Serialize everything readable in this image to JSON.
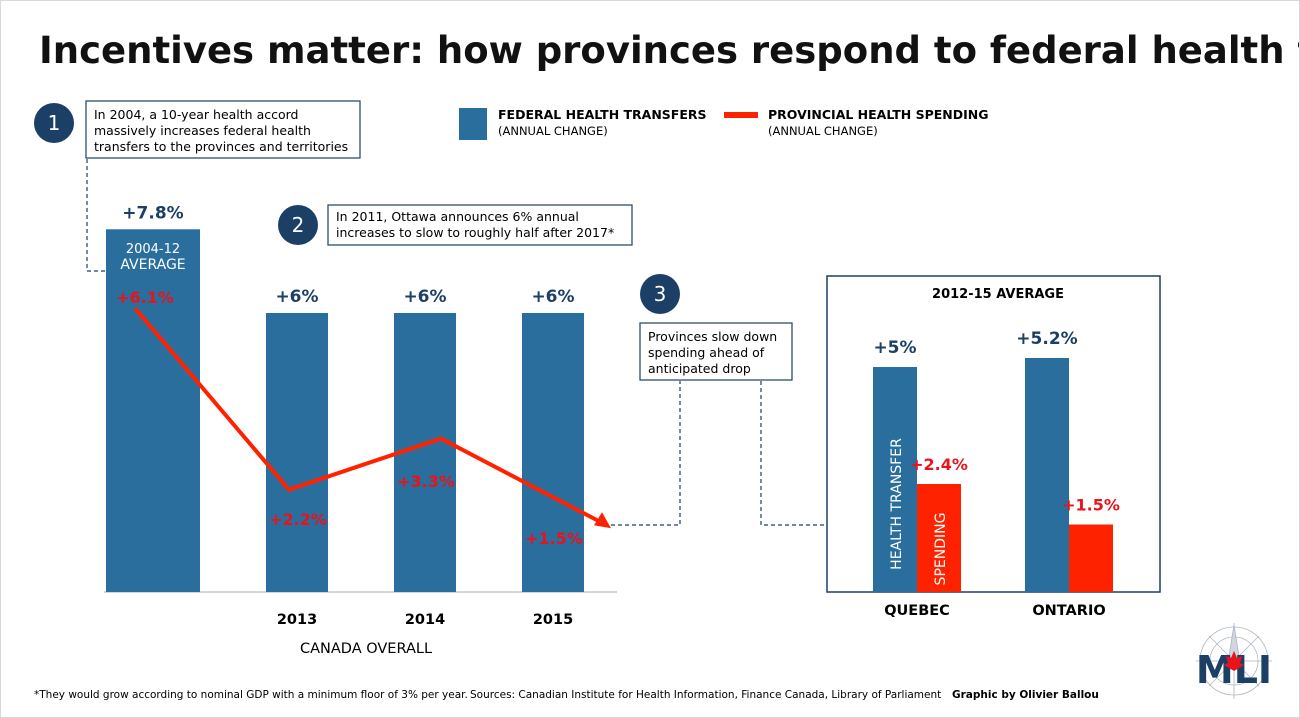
{
  "title": "Incentives matter: how provinces respond to federal health funding",
  "legend": {
    "federal": {
      "label": "FEDERAL HEALTH TRANSFERS",
      "sub": "(ANNUAL CHANGE)"
    },
    "provincial": {
      "label": "PROVINCIAL HEALTH SPENDING",
      "sub": "(ANNUAL CHANGE)"
    }
  },
  "annotations": [
    {
      "number": "1",
      "lines": [
        "In 2004, a 10-year health accord",
        "massively increases federal health",
        "transfers to the provinces and territories"
      ]
    },
    {
      "number": "2",
      "lines": [
        "In 2011, Ottawa announces 6% annual",
        "increases to slow to roughly half after 2017*"
      ]
    },
    {
      "number": "3",
      "lines": [
        "Provinces slow down",
        "spending ahead of",
        "anticipated drop"
      ]
    }
  ],
  "colors": {
    "federal": "#2a6e9e",
    "provincial": "#ff2200",
    "circle": "#1c3f66",
    "dark_label": "#1c3f66",
    "red_label": "#e8131b"
  },
  "chart_data": [
    {
      "type": "bar",
      "categories": [
        "2004-12 AVERAGE",
        "2013",
        "2014",
        "2015"
      ],
      "bar_inner_label": [
        "2004-12",
        "AVERAGE"
      ],
      "xlabel": "CANADA OVERALL",
      "series": [
        {
          "name": "FEDERAL HEALTH TRANSFERS",
          "type": "bar",
          "values": [
            7.8,
            6,
            6,
            6
          ],
          "labels": [
            "+7.8%",
            "+6%",
            "+6%",
            "+6%"
          ]
        },
        {
          "name": "PROVINCIAL HEALTH SPENDING",
          "type": "line",
          "values": [
            6.1,
            2.2,
            3.3,
            1.5
          ],
          "labels": [
            "+6.1%",
            "+2.2%",
            "+3.3%",
            "+1.5%"
          ]
        }
      ]
    },
    {
      "type": "bar",
      "title": "2012-15 AVERAGE",
      "categories": [
        "QUEBEC",
        "ONTARIO"
      ],
      "bar_text": {
        "federal": "HEALTH TRANSFER",
        "provincial": "SPENDING"
      },
      "series": [
        {
          "name": "FEDERAL HEALTH TRANSFERS",
          "values": [
            5,
            5.2
          ],
          "labels": [
            "+5%",
            "+5.2%"
          ]
        },
        {
          "name": "PROVINCIAL HEALTH SPENDING",
          "values": [
            2.4,
            1.5
          ],
          "labels": [
            "+2.4%",
            "+1.5%"
          ]
        }
      ]
    }
  ],
  "footer": {
    "note": "*They would grow according to nominal GDP with a minimum floor of 3% per year.",
    "sources": "Sources: Canadian Institute for Health Information, Finance Canada, Library of Parliament",
    "credit": "Graphic by Olivier Ballou"
  },
  "logo": {
    "text": "MLI",
    "icon": "compass-rose-icon"
  }
}
